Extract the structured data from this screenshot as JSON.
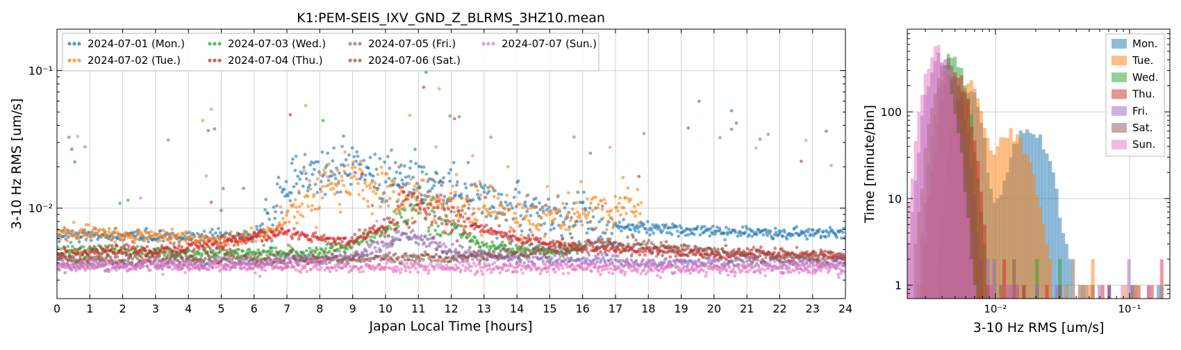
{
  "chart_data": [
    {
      "type": "scatter",
      "title": "K1:PEM-SEIS_IXV_GND_Z_BLRMS_3HZ10.mean",
      "xlabel": "Japan Local Time [hours]",
      "ylabel": "3-10 Hz RMS [um/s]",
      "xlim": [
        0,
        24
      ],
      "ylim": [
        0.0022,
        0.2
      ],
      "yscale": "log",
      "grid": true,
      "legend_position": "top-left",
      "x_ticks": [
        "0",
        "1",
        "2",
        "3",
        "4",
        "5",
        "6",
        "7",
        "8",
        "9",
        "10",
        "11",
        "12",
        "13",
        "14",
        "15",
        "16",
        "17",
        "18",
        "19",
        "20",
        "21",
        "22",
        "23",
        "24"
      ],
      "y_ticks": [
        {
          "value": 0.1,
          "label": "10⁻¹"
        },
        {
          "value": 0.01,
          "label": "10⁻²"
        }
      ],
      "series": [
        {
          "name": "2024-07-01 (Mon.)",
          "color": "#1f77b4",
          "x": [
            0,
            1,
            2,
            3,
            4,
            5,
            6,
            6.5,
            7,
            7.5,
            8,
            8.5,
            9,
            9.5,
            10,
            10.5,
            11,
            11.5,
            12,
            12.5,
            13,
            13.5,
            14,
            15,
            16,
            17,
            18,
            19,
            20,
            21,
            22,
            23,
            24
          ],
          "y": [
            0.0065,
            0.0064,
            0.0063,
            0.0062,
            0.0062,
            0.0062,
            0.0063,
            0.0085,
            0.014,
            0.017,
            0.018,
            0.019,
            0.021,
            0.02,
            0.017,
            0.016,
            0.015,
            0.014,
            0.013,
            0.012,
            0.011,
            0.0105,
            0.0095,
            0.0085,
            0.008,
            0.0075,
            0.0072,
            0.007,
            0.0068,
            0.0067,
            0.0066,
            0.0066,
            0.0065
          ]
        },
        {
          "name": "2024-07-02 (Tue.)",
          "color": "#ff7f0e",
          "x": [
            0,
            1,
            2,
            3,
            4,
            5,
            6,
            6.5,
            7,
            7.5,
            8,
            8.5,
            9,
            9.5,
            10,
            10.5,
            11,
            11.5,
            12,
            12.5,
            13,
            13.5,
            14,
            15,
            16,
            17,
            17.8
          ],
          "y": [
            0.0068,
            0.0066,
            0.0064,
            0.0062,
            0.006,
            0.006,
            0.0062,
            0.0068,
            0.008,
            0.011,
            0.014,
            0.015,
            0.016,
            0.014,
            0.013,
            0.012,
            0.012,
            0.011,
            0.011,
            0.01,
            0.01,
            0.0095,
            0.009,
            0.0085,
            0.0095,
            0.0095,
            0.0105
          ]
        },
        {
          "name": "2024-07-03 (Wed.)",
          "color": "#2ca02c",
          "x": [
            0,
            1,
            2,
            3,
            4,
            5,
            6,
            7,
            8,
            9,
            10,
            10.5,
            11,
            11.5,
            12,
            13,
            14,
            15,
            16
          ],
          "y": [
            0.0048,
            0.0049,
            0.0049,
            0.0048,
            0.0047,
            0.0047,
            0.0047,
            0.0047,
            0.0048,
            0.0055,
            0.007,
            0.009,
            0.01,
            0.009,
            0.0075,
            0.0052,
            0.005,
            0.0049,
            0.005
          ]
        },
        {
          "name": "2024-07-04 (Thu.)",
          "color": "#d62728",
          "x": [
            0,
            1,
            2,
            3,
            4,
            5,
            6,
            7,
            8,
            9,
            10,
            10.5,
            11,
            11.5,
            12,
            13,
            14,
            15,
            16,
            17,
            18,
            19,
            20,
            21,
            22,
            23,
            24
          ],
          "y": [
            0.0046,
            0.0048,
            0.0049,
            0.005,
            0.0052,
            0.0055,
            0.0062,
            0.0067,
            0.006,
            0.0058,
            0.0075,
            0.0095,
            0.011,
            0.01,
            0.0085,
            0.007,
            0.006,
            0.0055,
            0.0052,
            0.005,
            0.0049,
            0.0048,
            0.0047,
            0.0047,
            0.0046,
            0.0046,
            0.0045
          ]
        },
        {
          "name": "2024-07-05 (Fri.)",
          "color": "#9467bd",
          "x": [
            0,
            2,
            4,
            6,
            8,
            9,
            10,
            10.5,
            11,
            12,
            13,
            14,
            16,
            18,
            20,
            22,
            24
          ],
          "y": [
            0.0038,
            0.0039,
            0.0039,
            0.004,
            0.0042,
            0.0045,
            0.0055,
            0.0065,
            0.006,
            0.0048,
            0.0045,
            0.0043,
            0.0042,
            0.004,
            0.004,
            0.004,
            0.004
          ]
        },
        {
          "name": "2024-07-06 (Sat.)",
          "color": "#8c564b",
          "x": [
            0,
            2,
            4,
            6,
            8,
            10,
            12,
            13,
            14,
            15,
            16,
            16.5,
            17,
            18,
            19,
            20,
            21,
            22,
            23,
            24
          ],
          "y": [
            0.0043,
            0.0043,
            0.0043,
            0.0043,
            0.0043,
            0.0043,
            0.0044,
            0.0046,
            0.0047,
            0.005,
            0.0052,
            0.0056,
            0.0055,
            0.0052,
            0.005,
            0.0048,
            0.0046,
            0.0045,
            0.0044,
            0.0043
          ]
        },
        {
          "name": "2024-07-07 (Sun.)",
          "color": "#e377c2",
          "x": [
            0,
            2,
            4,
            6,
            8,
            10,
            12,
            14,
            16,
            18,
            20,
            22,
            24
          ],
          "y": [
            0.0038,
            0.0038,
            0.0038,
            0.0038,
            0.0038,
            0.0037,
            0.0037,
            0.0037,
            0.0037,
            0.0036,
            0.0036,
            0.0036,
            0.0036
          ]
        }
      ]
    },
    {
      "type": "bar",
      "subtype": "histogram",
      "xlabel": "3-10 Hz RMS [um/s]",
      "ylabel": "Time [minute/bin]",
      "xscale": "log",
      "yscale": "log",
      "xlim": [
        0.0022,
        0.2
      ],
      "ylim": [
        0.7,
        900
      ],
      "grid": true,
      "legend_position": "top-right",
      "x_ticks": [
        {
          "value": 0.01,
          "label": "10⁻²"
        },
        {
          "value": 0.1,
          "label": "10⁻¹"
        }
      ],
      "y_ticks": [
        {
          "value": 1,
          "label": "1"
        },
        {
          "value": 10,
          "label": "10"
        },
        {
          "value": 100,
          "label": "100"
        }
      ],
      "series": [
        {
          "name": "Mon.",
          "color": "#1f77b4",
          "peak": 0.0062,
          "peak_count": 180,
          "secondary_peak": 0.018,
          "secondary_count": 65
        },
        {
          "name": "Tue.",
          "color": "#ff7f0e",
          "peak": 0.0063,
          "peak_count": 220,
          "secondary_peak": 0.013,
          "secondary_count": 55
        },
        {
          "name": "Wed.",
          "color": "#2ca02c",
          "peak": 0.0048,
          "peak_count": 450
        },
        {
          "name": "Thu.",
          "color": "#d62728",
          "peak": 0.005,
          "peak_count": 300
        },
        {
          "name": "Fri.",
          "color": "#9467bd",
          "peak": 0.0039,
          "peak_count": 420
        },
        {
          "name": "Sat.",
          "color": "#8c564b",
          "peak": 0.0044,
          "peak_count": 380
        },
        {
          "name": "Sun.",
          "color": "#e377c2",
          "peak": 0.0037,
          "peak_count": 500
        }
      ]
    }
  ]
}
